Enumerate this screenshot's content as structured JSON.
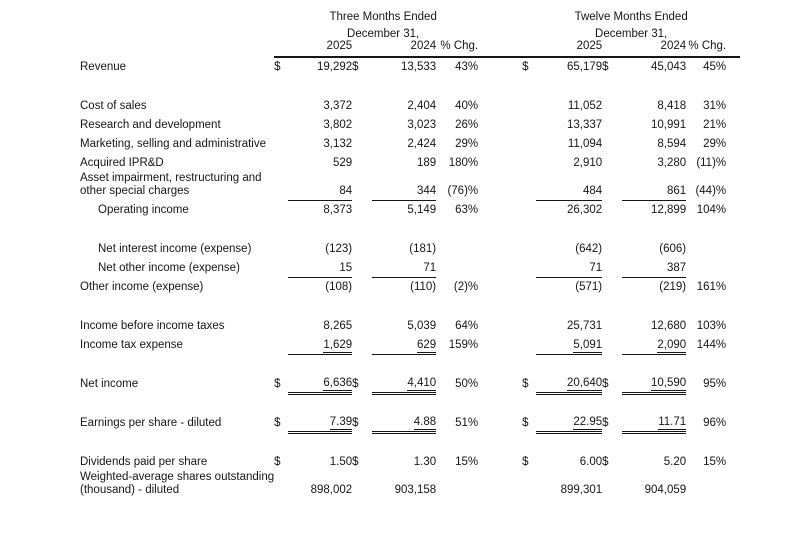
{
  "header": {
    "groups": [
      {
        "period": "Three Months Ended",
        "date": "December 31,",
        "year_a": "2025",
        "year_b": "2024",
        "chg": "% Chg."
      },
      {
        "period": "Twelve Months Ended",
        "date": "December 31,",
        "year_a": "2025",
        "year_b": "2024",
        "chg": "% Chg."
      }
    ]
  },
  "rows": [
    {
      "label": "Revenue",
      "d1": "$",
      "v1": "19,292",
      "d2": "$",
      "v2": "13,533",
      "p1": "43%",
      "d3": "$",
      "v3": "65,179",
      "d4": "$",
      "v4": "45,043",
      "p2": "45%",
      "rule": ""
    },
    {
      "spacer": true
    },
    {
      "label": "Cost of sales",
      "d1": "",
      "v1": "3,372",
      "d2": "",
      "v2": "2,404",
      "p1": "40%",
      "d3": "",
      "v3": "11,052",
      "d4": "",
      "v4": "8,418",
      "p2": "31%",
      "rule": ""
    },
    {
      "label": "Research and development",
      "d1": "",
      "v1": "3,802",
      "d2": "",
      "v2": "3,023",
      "p1": "26%",
      "d3": "",
      "v3": "13,337",
      "d4": "",
      "v4": "10,991",
      "p2": "21%",
      "rule": ""
    },
    {
      "label": "Marketing, selling and administrative",
      "d1": "",
      "v1": "3,132",
      "d2": "",
      "v2": "2,424",
      "p1": "29%",
      "d3": "",
      "v3": "11,094",
      "d4": "",
      "v4": "8,594",
      "p2": "29%",
      "rule": ""
    },
    {
      "label": "Acquired IPR&D",
      "d1": "",
      "v1": "529",
      "d2": "",
      "v2": "189",
      "p1": "180%",
      "d3": "",
      "v3": "2,910",
      "d4": "",
      "v4": "3,280",
      "p2": "(11)%",
      "rule": ""
    },
    {
      "label": "Asset impairment, restructuring and",
      "label2": "other special charges",
      "d1": "",
      "v1": "84",
      "d2": "",
      "v2": "344",
      "p1": "(76)%",
      "d3": "",
      "v3": "484",
      "d4": "",
      "v4": "861",
      "p2": "(44)%",
      "rule": "u1"
    },
    {
      "label": "Operating income",
      "indent": true,
      "d1": "",
      "v1": "8,373",
      "d2": "",
      "v2": "5,149",
      "p1": "63%",
      "d3": "",
      "v3": "26,302",
      "d4": "",
      "v4": "12,899",
      "p2": "104%",
      "rule": ""
    },
    {
      "spacer": true
    },
    {
      "label": "Net interest income (expense)",
      "indent": true,
      "d1": "",
      "v1": "(123)",
      "d2": "",
      "v2": "(181)",
      "p1": "",
      "d3": "",
      "v3": "(642)",
      "d4": "",
      "v4": "(606)",
      "p2": "",
      "rule": ""
    },
    {
      "label": "Net other income (expense)",
      "indent": true,
      "d1": "",
      "v1": "15",
      "d2": "",
      "v2": "71",
      "p1": "",
      "d3": "",
      "v3": "71",
      "d4": "",
      "v4": "387",
      "p2": "",
      "rule": "u1"
    },
    {
      "label": "Other income (expense)",
      "d1": "",
      "v1": "(108)",
      "d2": "",
      "v2": "(110)",
      "p1": "(2)%",
      "d3": "",
      "v3": "(571)",
      "d4": "",
      "v4": "(219)",
      "p2": "161%",
      "rule": ""
    },
    {
      "spacer": true
    },
    {
      "label": "Income before income taxes",
      "d1": "",
      "v1": "8,265",
      "d2": "",
      "v2": "5,039",
      "p1": "64%",
      "d3": "",
      "v3": "25,731",
      "d4": "",
      "v4": "12,680",
      "p2": "103%",
      "rule": ""
    },
    {
      "label": "Income tax expense",
      "d1": "",
      "v1": "1,629",
      "d2": "",
      "v2": "629",
      "p1": "159%",
      "d3": "",
      "v3": "5,091",
      "d4": "",
      "v4": "2,090",
      "p2": "144%",
      "rule": "u2"
    },
    {
      "spacer": true
    },
    {
      "label": "Net income",
      "d1": "$",
      "v1": "6,636",
      "d2": "$",
      "v2": "4,410",
      "p1": "50%",
      "d3": "$",
      "v3": "20,640",
      "d4": "$",
      "v4": "10,590",
      "p2": "95%",
      "rule": "u3"
    },
    {
      "spacer": true
    },
    {
      "label": "Earnings per share - diluted",
      "d1": "$",
      "v1": "7.39",
      "d2": "$",
      "v2": "4.88",
      "p1": "51%",
      "d3": "$",
      "v3": "22.95",
      "d4": "$",
      "v4": "11.71",
      "p2": "96%",
      "rule": "u3"
    },
    {
      "spacer": true
    },
    {
      "label": "Dividends paid per share",
      "d1": "$",
      "v1": "1.50",
      "d2": "$",
      "v2": "1.30",
      "p1": "15%",
      "d3": "$",
      "v3": "6.00",
      "d4": "$",
      "v4": "5.20",
      "p2": "15%",
      "rule": ""
    },
    {
      "label": "Weighted-average shares outstanding",
      "label2": "(thousand) - diluted",
      "d1": "",
      "v1": "898,002",
      "d2": "",
      "v2": "903,158",
      "p1": "",
      "d3": "",
      "v3": "899,301",
      "d4": "",
      "v4": "904,059",
      "p2": "",
      "rule": ""
    }
  ],
  "colors": {
    "text": "#161616",
    "rule": "#161616",
    "background": "#ffffff"
  }
}
